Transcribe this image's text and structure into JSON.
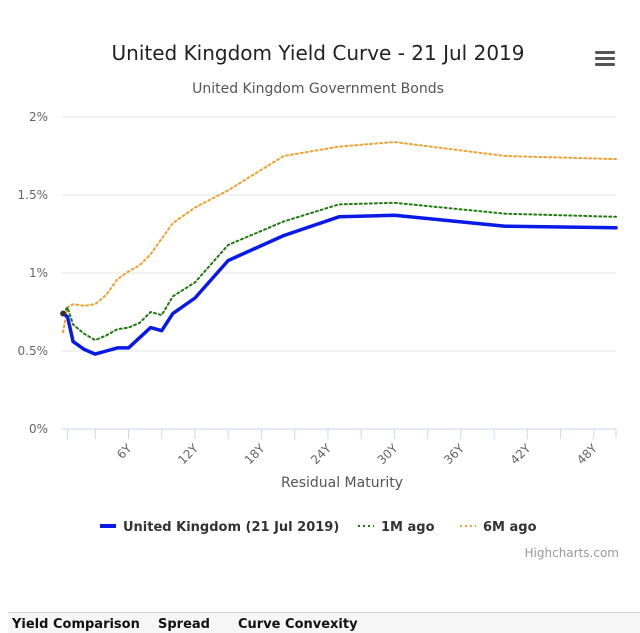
{
  "chart_data": {
    "type": "line",
    "title": "United Kingdom Yield Curve - 21 Jul 2019",
    "subtitle": "United Kingdom Government Bonds",
    "xlabel": "Residual Maturity",
    "ylabel": "",
    "xlim": [
      0,
      50
    ],
    "ylim": [
      0,
      2
    ],
    "x_ticks": [
      {
        "value": 6,
        "label": "6Y"
      },
      {
        "value": 12,
        "label": "12Y"
      },
      {
        "value": 18,
        "label": "18Y"
      },
      {
        "value": 24,
        "label": "24Y"
      },
      {
        "value": 30,
        "label": "30Y"
      },
      {
        "value": 36,
        "label": "36Y"
      },
      {
        "value": 42,
        "label": "42Y"
      },
      {
        "value": 48,
        "label": "48Y"
      }
    ],
    "y_ticks": [
      {
        "value": 0,
        "label": "0%"
      },
      {
        "value": 0.5,
        "label": "0.5%"
      },
      {
        "value": 1,
        "label": "1%"
      },
      {
        "value": 1.5,
        "label": "1.5%"
      },
      {
        "value": 2,
        "label": "2%"
      }
    ],
    "series": [
      {
        "name": "United Kingdom (21 Jul 2019)",
        "color": "#0a1ae6",
        "style": "solid",
        "points": [
          [
            0.1,
            0.74
          ],
          [
            0.5,
            0.72
          ],
          [
            1,
            0.56
          ],
          [
            2,
            0.51
          ],
          [
            3,
            0.48
          ],
          [
            4,
            0.5
          ],
          [
            5,
            0.52
          ],
          [
            6,
            0.52
          ],
          [
            8,
            0.65
          ],
          [
            9,
            0.63
          ],
          [
            10,
            0.74
          ],
          [
            12,
            0.84
          ],
          [
            15,
            1.08
          ],
          [
            20,
            1.24
          ],
          [
            25,
            1.36
          ],
          [
            30,
            1.37
          ],
          [
            40,
            1.3
          ],
          [
            50,
            1.29
          ]
        ]
      },
      {
        "name": "1M ago",
        "color": "#207a10",
        "style": "dotted",
        "points": [
          [
            0.1,
            0.74
          ],
          [
            0.5,
            0.78
          ],
          [
            1,
            0.67
          ],
          [
            2,
            0.61
          ],
          [
            3,
            0.57
          ],
          [
            4,
            0.6
          ],
          [
            5,
            0.64
          ],
          [
            6,
            0.65
          ],
          [
            7,
            0.68
          ],
          [
            8,
            0.75
          ],
          [
            9,
            0.73
          ],
          [
            10,
            0.85
          ],
          [
            12,
            0.94
          ],
          [
            15,
            1.18
          ],
          [
            20,
            1.33
          ],
          [
            25,
            1.44
          ],
          [
            30,
            1.45
          ],
          [
            40,
            1.38
          ],
          [
            50,
            1.36
          ]
        ]
      },
      {
        "name": "6M ago",
        "color": "#f2a030",
        "style": "dotted",
        "points": [
          [
            0.1,
            0.62
          ],
          [
            0.5,
            0.78
          ],
          [
            1,
            0.8
          ],
          [
            2,
            0.79
          ],
          [
            3,
            0.8
          ],
          [
            4,
            0.86
          ],
          [
            5,
            0.96
          ],
          [
            6,
            1.01
          ],
          [
            7,
            1.05
          ],
          [
            8,
            1.12
          ],
          [
            10,
            1.32
          ],
          [
            12,
            1.42
          ],
          [
            15,
            1.53
          ],
          [
            20,
            1.75
          ],
          [
            25,
            1.81
          ],
          [
            30,
            1.84
          ],
          [
            40,
            1.75
          ],
          [
            50,
            1.73
          ]
        ]
      }
    ],
    "legend_position": "bottom-center",
    "credits": "Highcharts.com"
  },
  "tabs": [
    "Yield Comparison",
    "Spread",
    "Curve Convexity"
  ]
}
